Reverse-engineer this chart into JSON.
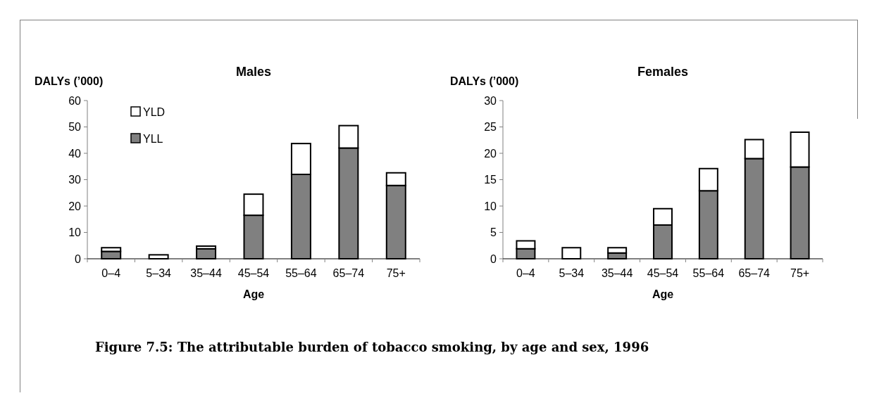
{
  "chart_data": [
    {
      "type": "bar",
      "title": "Males",
      "ylabel": "DALYs (’000)",
      "xlabel": "Age",
      "categories": [
        "0–4",
        "5–34",
        "35–44",
        "45–54",
        "55–64",
        "65–74",
        "75+"
      ],
      "stacked": true,
      "legend": "top left",
      "ylim": [
        0,
        60
      ],
      "yticks": [
        0,
        10,
        20,
        30,
        40,
        50,
        60
      ],
      "grid": false,
      "series": [
        {
          "name": "YLL",
          "color": "#808080",
          "values": [
            2.8,
            0,
            3.8,
            16.5,
            32,
            42,
            27.8
          ]
        },
        {
          "name": "YLD",
          "color": "#ffffff",
          "values": [
            1.4,
            1.5,
            1.0,
            8.0,
            11.7,
            8.5,
            4.8
          ]
        }
      ],
      "annotations": [
        "Figure 7.5: The attributable burden of tobacco smoking, by age and sex, 1996"
      ]
    },
    {
      "type": "bar",
      "title": "Females",
      "ylabel": "DALYs (’000)",
      "xlabel": "Age",
      "categories": [
        "0–4",
        "5–34",
        "35–44",
        "45–54",
        "55–64",
        "65–74",
        "75+"
      ],
      "stacked": true,
      "ylim": [
        0,
        30
      ],
      "yticks": [
        0,
        5,
        10,
        15,
        20,
        25,
        30
      ],
      "grid": false,
      "series": [
        {
          "color": "#808080",
          "values": [
            1.9,
            0,
            1.1,
            6.4,
            12.9,
            19,
            17.4
          ]
        },
        {
          "color": "#ffffff",
          "values": [
            1.5,
            2.1,
            1.0,
            3.1,
            4.2,
            3.6,
            6.6
          ]
        }
      ]
    }
  ]
}
